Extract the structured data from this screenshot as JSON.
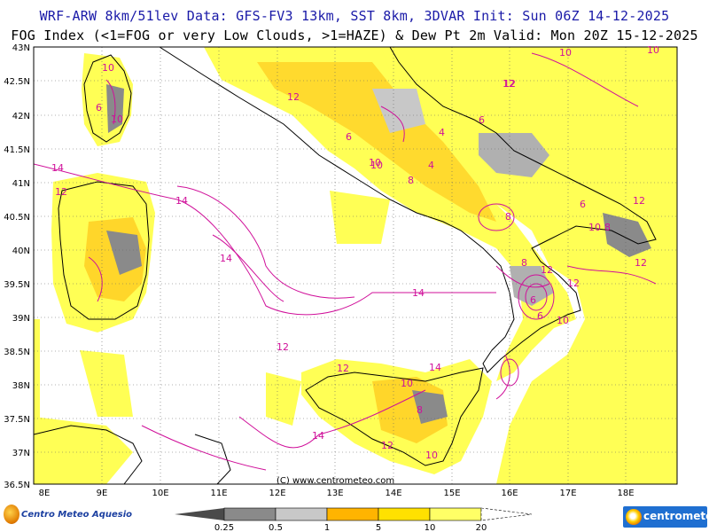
{
  "header": {
    "line1": "WRF-ARW 8km/51lev  Data: GFS-FV3 13km, SST 8km, 3DVAR  Init: Sun 06Z 14-12-2025",
    "line2": "FOG Index (<1=FOG or very Low Clouds, >1=HAZE) & Dew Pt 2m  Valid: Mon 20Z 15-12-2025"
  },
  "map": {
    "lat_labels": [
      "43N",
      "42.5N",
      "42N",
      "41.5N",
      "41N",
      "40.5N",
      "40N",
      "39.5N",
      "39N",
      "38.5N",
      "38N",
      "37.5N",
      "37N",
      "36.5N"
    ],
    "lon_labels": [
      "8E",
      "9E",
      "10E",
      "11E",
      "12E",
      "13E",
      "14E",
      "15E",
      "16E",
      "17E",
      "18E"
    ],
    "copyright": "(C) www.centrometeo.com",
    "contour_labels": [
      "10",
      "12",
      "6",
      "14",
      "12",
      "14",
      "14",
      "14",
      "12",
      "4",
      "6",
      "8",
      "10",
      "12",
      "4",
      "6",
      "10",
      "8",
      "12",
      "6",
      "12",
      "6",
      "10",
      "12",
      "10",
      "8",
      "14",
      "12",
      "10",
      "12",
      "8",
      "6",
      "10",
      "8",
      "12",
      "14",
      "10",
      "12",
      "10",
      "10"
    ]
  },
  "colorbar": {
    "ticks": [
      "0.25",
      "0.5",
      "1",
      "5",
      "10",
      "20"
    ],
    "colors": [
      "#4a4a4a",
      "#8a8a8a",
      "#c8c8c8",
      "#ffb400",
      "#ffe100",
      "#ffff66",
      "#ffffff"
    ]
  },
  "logos": {
    "left": "Centro Meteo Aquesio",
    "right": "centrometeo"
  }
}
